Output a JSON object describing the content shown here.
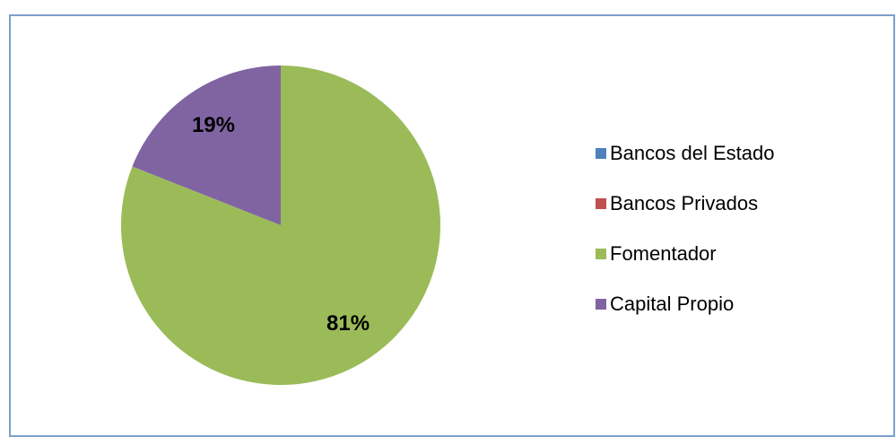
{
  "chart_data": {
    "type": "pie",
    "categories": [
      "Bancos del Estado",
      "Bancos Privados",
      "Fomentador",
      "Capital Propio"
    ],
    "values": [
      0,
      0,
      81,
      19
    ],
    "value_labels": [
      null,
      null,
      "81%",
      "19%"
    ],
    "colors": [
      "#4f81bd",
      "#c0504d",
      "#9bbb59",
      "#8064a2"
    ],
    "legend": "right"
  }
}
